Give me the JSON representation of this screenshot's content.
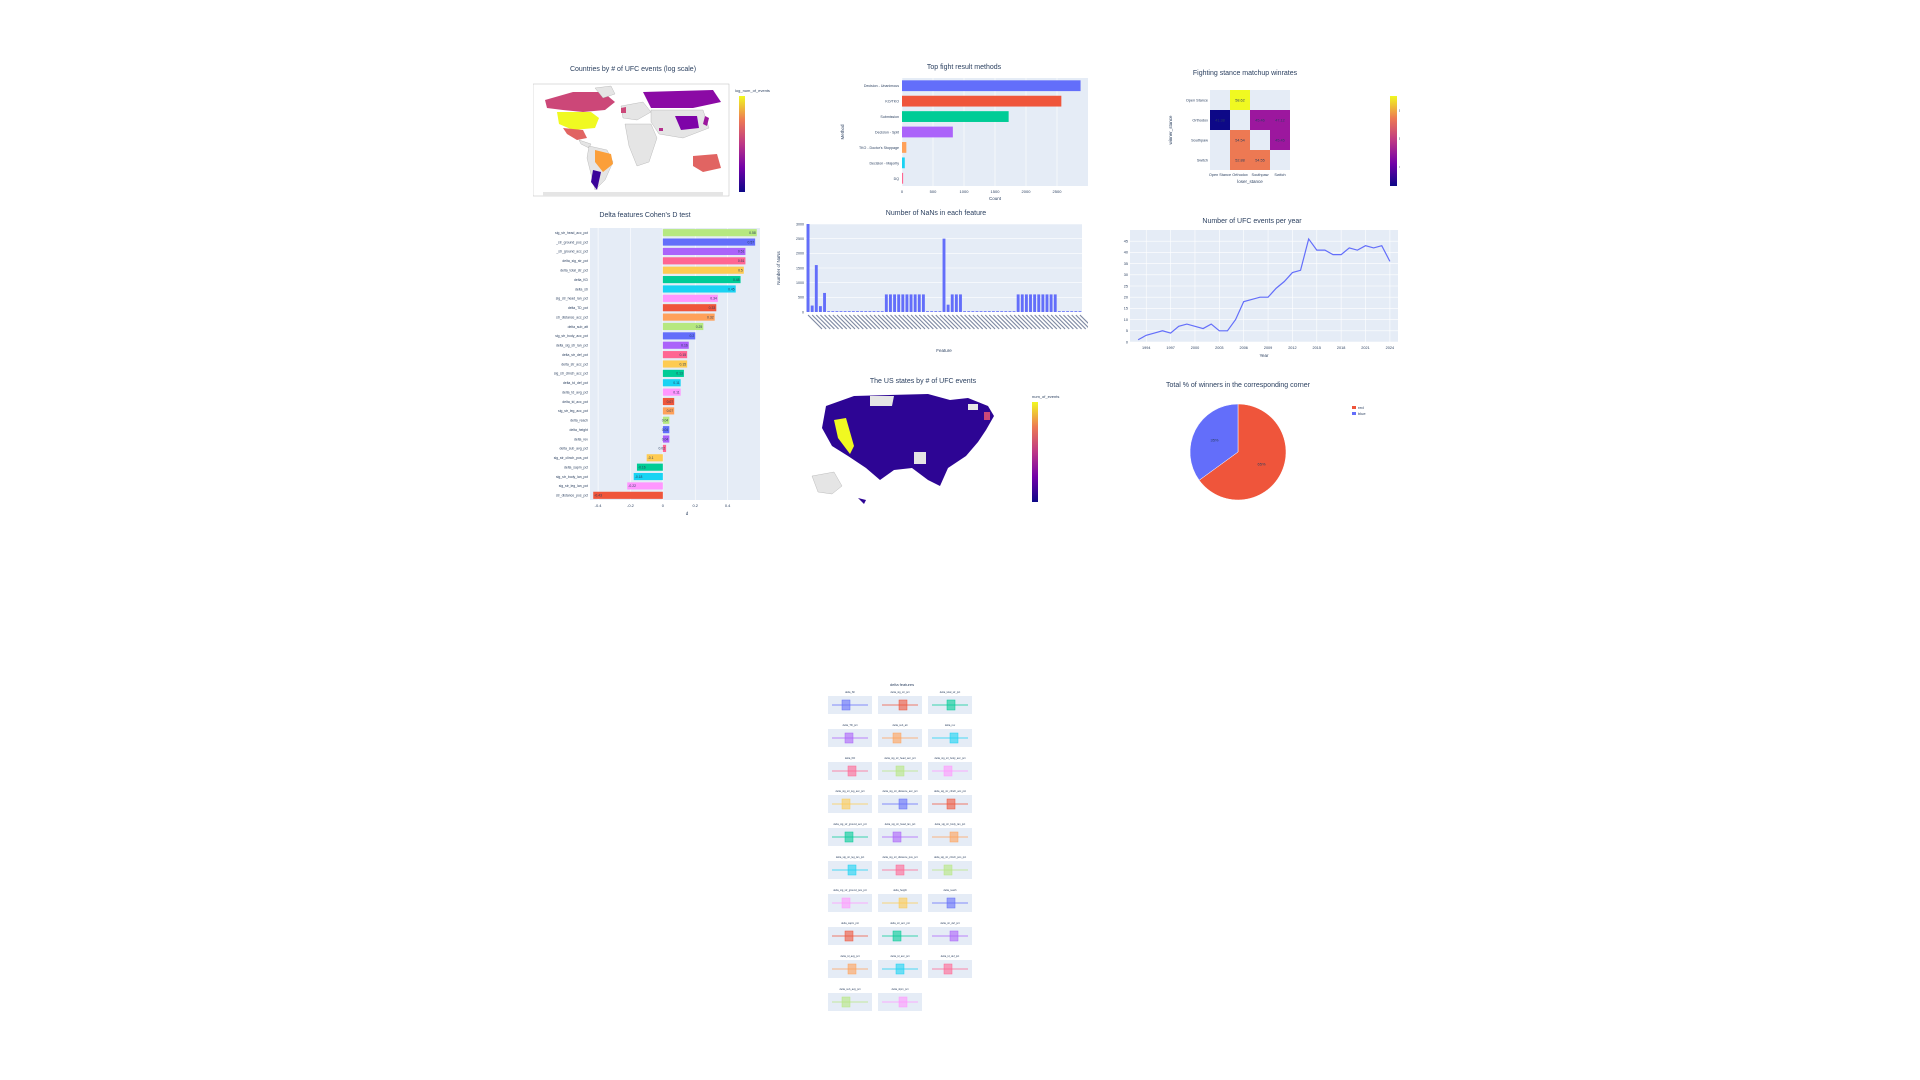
{
  "colors": {
    "plot_bg": "#E5ECF6",
    "palette": [
      "#636EFA",
      "#EF553B",
      "#00CC96",
      "#AB63FA",
      "#FFA15A",
      "#19D3F3",
      "#FF6692",
      "#B6E880",
      "#FF97FF",
      "#FECB52"
    ],
    "plasma": [
      "#0d0887",
      "#46039f",
      "#7201a8",
      "#9c179e",
      "#bd3786",
      "#d8576b",
      "#ed7953",
      "#fb9f3a",
      "#fdca26",
      "#f0f921"
    ]
  },
  "world_map": {
    "title": "Countries by # of UFC events (log scale)",
    "colorbar_title": "log_num_of_events",
    "countries": [
      {
        "name": "USA",
        "level": 1.0
      },
      {
        "name": "Canada",
        "level": 0.55
      },
      {
        "name": "Mexico",
        "level": 0.5
      },
      {
        "name": "Brazil",
        "level": 0.72
      },
      {
        "name": "Argentina",
        "level": 0.15
      },
      {
        "name": "Chile",
        "level": 0.1
      },
      {
        "name": "UK",
        "level": 0.55
      },
      {
        "name": "Russia",
        "level": 0.35
      },
      {
        "name": "Australia",
        "level": 0.6
      },
      {
        "name": "China",
        "level": 0.3
      },
      {
        "name": "Japan",
        "level": 0.4
      },
      {
        "name": "UAE",
        "level": 0.45
      }
    ]
  },
  "methods_chart": {
    "title": "Top fight result methods",
    "xlabel": "Count",
    "ylabel": "Method",
    "categories": [
      "DQ",
      "Decision - Majority",
      "TKO - Doctor's Stoppage",
      "Decision - Split",
      "Submission",
      "KO/TKO",
      "Decision - Unanimous"
    ],
    "values": [
      18,
      45,
      70,
      820,
      1720,
      2570,
      2880
    ],
    "xticks": [
      "0",
      "500",
      "1000",
      "1500",
      "2000",
      "2500"
    ],
    "xlim": [
      0,
      3000
    ]
  },
  "heatmap": {
    "title": "Fighting stance matchup winrates",
    "xlabel": "loser_stance",
    "ylabel": "winner_stance",
    "x": [
      "Open Stance",
      "Orthodox",
      "Southpaw",
      "Switch"
    ],
    "y": [
      "Open Stance",
      "Orthodox",
      "Southpaw",
      "Switch"
    ],
    "ylabels": [
      "Open Stance",
      "Orthodox",
      "Southpaw",
      "Switch"
    ],
    "xlabels": [
      "Open Stance",
      "Orthodox",
      "Southpaw",
      "Switch"
    ],
    "cells": [
      {
        "r": 0,
        "c": 1,
        "v": "58.62",
        "level": 0.98
      },
      {
        "r": 1,
        "c": 0,
        "v": "41.38",
        "level": 0.0
      },
      {
        "r": 1,
        "c": 2,
        "v": "45.46",
        "level": 0.3
      },
      {
        "r": 1,
        "c": 3,
        "v": "47.12",
        "level": 0.35
      },
      {
        "r": 2,
        "c": 1,
        "v": "54.54",
        "level": 0.72
      },
      {
        "r": 2,
        "c": 3,
        "v": "45.45",
        "level": 0.28
      },
      {
        "r": 3,
        "c": 1,
        "v": "52.88",
        "level": 0.68
      },
      {
        "r": 3,
        "c": 2,
        "v": "54.55",
        "level": 0.72
      }
    ],
    "colorbar_ticks": [
      "55",
      "50",
      "45"
    ]
  },
  "cohen_chart": {
    "title": "Delta features Cohen's D test",
    "xlabel": "d",
    "xlim": [
      -0.45,
      0.6
    ],
    "xticks": [
      "-0.4",
      "-0.2",
      "0",
      "0.2",
      "0.4"
    ],
    "categories": [
      "sig_str_head_acc_pct",
      "_str_ground_pos_pct",
      "_str_ground_acc_pct",
      "delta_sig_str_pct",
      "delta_total_str_pct",
      "delta_KD",
      "delta_str",
      "sig_str_head_lan_pct",
      "delta_TD_pct",
      "str_distance_acc_pct",
      "delta_sub_att",
      "sig_str_body_acc_pct",
      "delta_sig_str_lan_pct",
      "delta_str_def_pct",
      "delta_str_acc_pct",
      "sig_str_clinch_acc_pct",
      "delta_td_def_pct",
      "delta_td_avg_pct",
      "delta_td_acc_pct",
      "sig_str_leg_acc_pct",
      "delta_reach",
      "delta_height",
      "delta_rev",
      "delta_sub_avg_pct",
      "sig_str_clinch_pos_pct",
      "delta_sapm_pct",
      "sig_str_body_lan_pct",
      "sig_str_leg_lan_pct",
      "str_distance_pos_pct"
    ],
    "values": [
      0.58,
      0.57,
      0.51,
      0.51,
      0.5,
      0.48,
      0.45,
      0.34,
      0.33,
      0.32,
      0.25,
      0.2,
      0.16,
      0.15,
      0.15,
      0.13,
      0.11,
      0.11,
      0.07,
      0.07,
      0.04,
      0.04,
      0.04,
      0.02,
      -0.1,
      -0.16,
      -0.18,
      -0.22,
      -0.43
    ],
    "labels": [
      "0.58",
      "0.57",
      "0.51",
      "0.51",
      "0.5",
      "0.48",
      "0.45",
      "0.34",
      "0.33",
      "0.32",
      "0.25",
      "0.2",
      "0.16",
      "0.15",
      "0.15",
      "0.13",
      "0.11",
      "0.11",
      "0.07",
      "0.07",
      "0.04",
      "0.04",
      "0.04",
      "0.02",
      "-0.1",
      "-0.16",
      "-0.18",
      "-0.22",
      "-0.43"
    ]
  },
  "nan_chart": {
    "title": "Number of NaNs in each feature",
    "xlabel": "Feature",
    "ylabel": "Number of NaNs",
    "ylim": [
      0,
      3000
    ],
    "yticks": [
      "0",
      "500",
      "1000",
      "1500",
      "2000",
      "2500",
      "3000"
    ],
    "values": [
      3000,
      220,
      1600,
      200,
      650,
      0,
      0,
      0,
      0,
      0,
      0,
      0,
      0,
      0,
      0,
      0,
      0,
      0,
      0,
      600,
      600,
      600,
      600,
      600,
      600,
      600,
      600,
      600,
      600,
      0,
      0,
      0,
      0,
      2500,
      250,
      600,
      600,
      600,
      0,
      0,
      0,
      0,
      0,
      0,
      0,
      0,
      0,
      0,
      0,
      0,
      0,
      600,
      600,
      600,
      600,
      600,
      600,
      600,
      600,
      600,
      600,
      0,
      0,
      0,
      0,
      0,
      0
    ]
  },
  "events_year": {
    "title": "Number of UFC events per year",
    "xlabel": "Year",
    "x": [
      1993,
      1994,
      1995,
      1996,
      1997,
      1998,
      1999,
      2000,
      2001,
      2002,
      2003,
      2004,
      2005,
      2006,
      2007,
      2008,
      2009,
      2010,
      2011,
      2012,
      2013,
      2014,
      2015,
      2016,
      2017,
      2018,
      2019,
      2020,
      2021,
      2022,
      2023,
      2024
    ],
    "y": [
      1,
      3,
      4,
      5,
      4,
      7,
      8,
      7,
      6,
      8,
      5,
      5,
      10,
      18,
      19,
      20,
      20,
      24,
      27,
      31,
      32,
      46,
      41,
      41,
      39,
      39,
      42,
      41,
      43,
      42,
      43,
      36
    ],
    "xticks": [
      "1994",
      "1997",
      "2000",
      "2003",
      "2006",
      "2009",
      "2012",
      "2015",
      "2018",
      "2021",
      "2024"
    ],
    "yticks": [
      "0",
      "5",
      "10",
      "15",
      "20",
      "25",
      "30",
      "35",
      "40",
      "45"
    ],
    "ylim": [
      0,
      50
    ]
  },
  "us_map": {
    "title": "The US states by # of UFC events",
    "colorbar_title": "num_of_events"
  },
  "pie_chart": {
    "title": "Total % of winners in the corresponding corner",
    "slices": [
      {
        "name": "red",
        "value": 65,
        "label": "65%",
        "color": "#EF553B"
      },
      {
        "name": "blue",
        "value": 35,
        "label": "35%",
        "color": "#636EFA"
      }
    ]
  },
  "delta_features": {
    "title": "delta features",
    "subplots": [
      "delta_SF",
      "delta_sig_str_pct",
      "delta_total_str_pct",
      "delta_TD_pct",
      "delta_sub_att",
      "delta_rev",
      "delta_KD",
      "delta_sig_str_head_acc_pct",
      "delta_sig_str_body_acc_pct",
      "delta_sig_str_leg_acc_pct",
      "delta_sig_str_distance_acc_pct",
      "delta_sig_str_clinch_acc_pct",
      "delta_sig_str_ground_acc_pct",
      "delta_sig_str_head_lan_pct",
      "delta_sig_str_body_lan_pct",
      "delta_sig_str_leg_lan_pct",
      "delta_sig_str_distance_pos_pct",
      "delta_sig_str_clinch_pos_pct",
      "delta_sig_str_ground_pos_pct",
      "delta_height",
      "delta_reach",
      "delta_sapm_pct",
      "delta_str_acc_pct",
      "delta_str_def_pct",
      "delta_td_avg_pct",
      "delta_td_acc_pct",
      "delta_td_def_pct",
      "delta_sub_avg_pct",
      "delta_slpm_pct"
    ]
  }
}
